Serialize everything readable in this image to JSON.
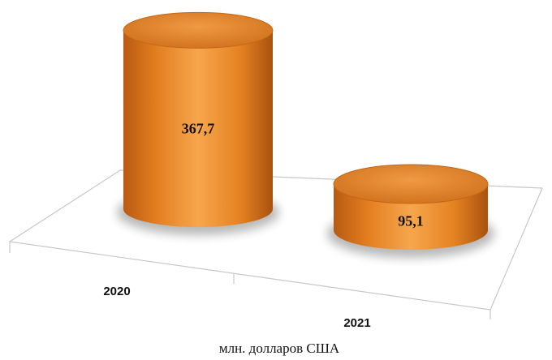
{
  "chart_data": {
    "type": "bar",
    "style": "3d-cylinder",
    "categories": [
      "2020",
      "2021"
    ],
    "values": [
      367.7,
      95.1
    ],
    "value_labels": [
      "367,7",
      "95,1"
    ],
    "unit_label": "млн. долларов США",
    "title": "",
    "xlabel": "",
    "ylabel": "",
    "grid": false,
    "legend": "none",
    "colors": {
      "bar_main": "#f28c28",
      "bar_dark": "#b85a12",
      "bar_light": "#f7a64d",
      "top_light": "#e8822a",
      "floor_line": "#c8c8c8"
    }
  }
}
